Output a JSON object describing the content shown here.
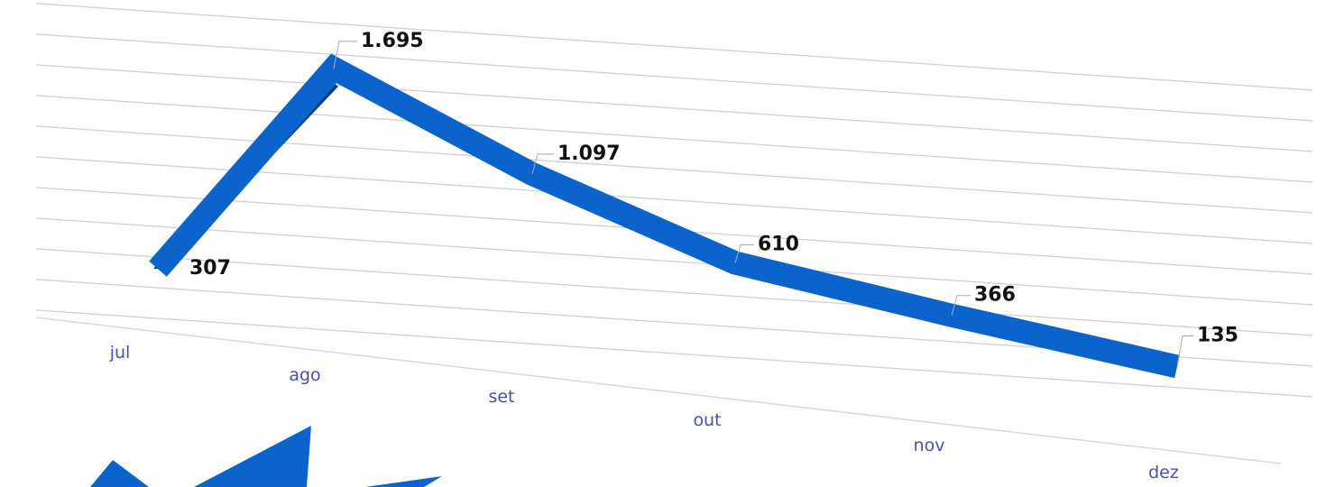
{
  "chart_data": {
    "type": "line3d",
    "categories": [
      "jul",
      "ago",
      "set",
      "out",
      "nov",
      "dez"
    ],
    "values": [
      307,
      1695,
      1097,
      610,
      366,
      135
    ],
    "value_labels": [
      "307",
      "1.695",
      "1.097",
      "610",
      "366",
      "135"
    ],
    "color": "#0b63cc",
    "ylim": [
      0,
      2000
    ],
    "yticks": [
      0,
      200,
      400,
      600,
      800,
      1000,
      1200,
      1400,
      1600,
      1800,
      2000
    ],
    "grid": true
  }
}
